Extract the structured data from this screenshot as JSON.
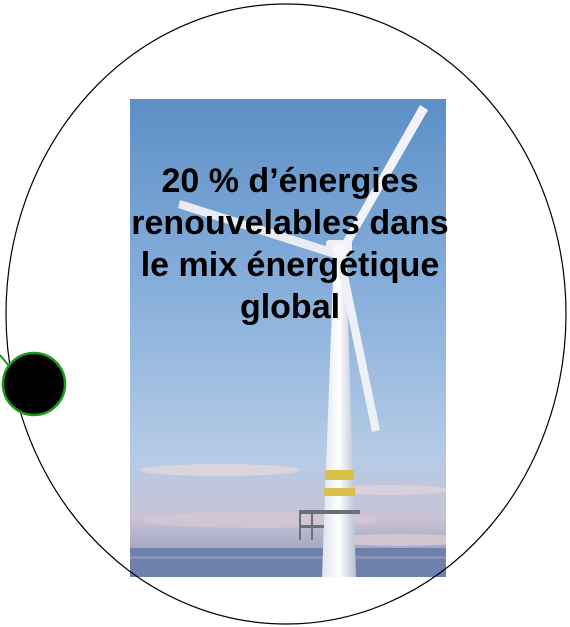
{
  "diagram": {
    "node_text": "20 % d’énergies renouvelables dans le mix énergétique global",
    "image_subject": "wind-turbine",
    "colors": {
      "outline": "#000000",
      "connector": "#1a9a1a",
      "dot_fill": "#000000"
    }
  }
}
